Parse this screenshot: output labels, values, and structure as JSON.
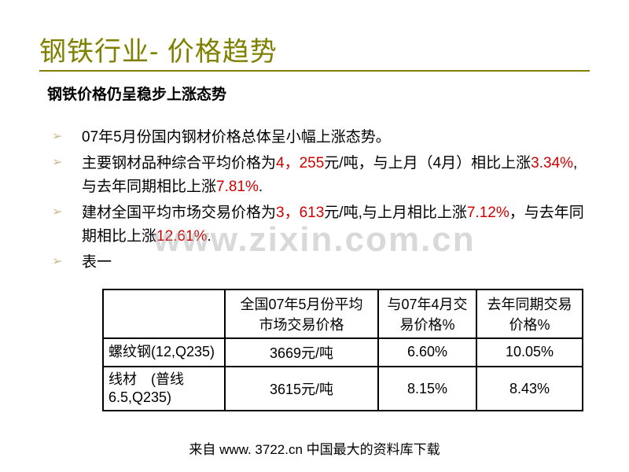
{
  "title": "钢铁行业- 价格趋势",
  "subtitle": "钢铁价格仍呈稳步上涨态势",
  "bullets": {
    "b1": "07年5月份国内钢材价格总体呈小幅上涨态势。",
    "b2a": "主要钢材品种综合平均价格为",
    "b2_v1": "4，255",
    "b2b": "元/吨，与上月（4月）相比上涨",
    "b2_v2": "3.34%",
    "b2c": ",与去年同期相比上涨",
    "b2_v3": "7.81%",
    "b2d": ".",
    "b3a": "建材全国平均市场交易价格为",
    "b3_v1": "3，613",
    "b3b": "元/吨,与上月相比上涨",
    "b3_v2": "7.12%",
    "b3c": "，与去年同期相比上涨",
    "b3_v3": "12.61%",
    "b3d": ".",
    "b4": "表一"
  },
  "table": {
    "headers": {
      "h0": "",
      "h1": "全国07年5月份平均市场交易价格",
      "h2": "与07年4月交易价格%",
      "h3": "去年同期交易价格%"
    },
    "rows": [
      {
        "name": "螺纹钢(12,Q235)",
        "c1": "3669元/吨",
        "c2": "6.60%",
        "c3": "10.05%"
      },
      {
        "name": "线材　(普线6.5,Q235)",
        "c1": "3615元/吨",
        "c2": "8.15%",
        "c3": "8.43%"
      }
    ]
  },
  "watermark": "www.zixin.com.cn",
  "footer": "来自 www. 3722.cn 中国最大的资料库下载",
  "colors": {
    "title": "#808000",
    "highlight": "#d00000",
    "bullet_marker": "#c9b98a",
    "watermark": "rgba(170,170,170,0.45)"
  }
}
